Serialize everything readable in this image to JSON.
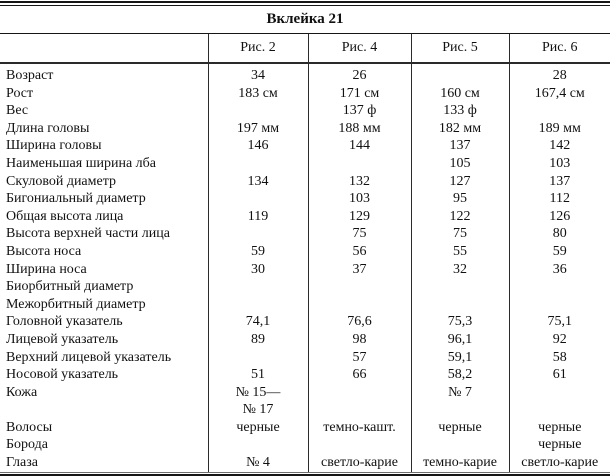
{
  "title": "Вклейка 21",
  "columns": [
    {
      "label": ""
    },
    {
      "label": "Рис. 2"
    },
    {
      "label": "Рис. 4"
    },
    {
      "label": "Рис. 5"
    },
    {
      "label": "Рис. 6"
    }
  ],
  "rows": [
    {
      "label": "Возраст",
      "values": [
        "34",
        "26",
        "",
        "28"
      ]
    },
    {
      "label": "Рост",
      "values": [
        "183 см",
        "171 см",
        "160 см",
        "167,4 см"
      ]
    },
    {
      "label": "Вес",
      "values": [
        "",
        "137 ф",
        "133 ф",
        ""
      ]
    },
    {
      "label": "Длина головы",
      "values": [
        "197 мм",
        "188 мм",
        "182 мм",
        "189 мм"
      ]
    },
    {
      "label": "Ширина головы",
      "values": [
        "146",
        "144",
        "137",
        "142"
      ]
    },
    {
      "label": "Наименьшая ширина лба",
      "values": [
        "",
        "",
        "105",
        "103"
      ]
    },
    {
      "label": "Скуловой диаметр",
      "values": [
        "134",
        "132",
        "127",
        "137"
      ]
    },
    {
      "label": "Бигониальный диаметр",
      "values": [
        "",
        "103",
        "95",
        "112"
      ]
    },
    {
      "label": "Общая высота лица",
      "values": [
        "119",
        "129",
        "122",
        "126"
      ]
    },
    {
      "label": "Высота верхней части лица",
      "values": [
        "",
        "75",
        "75",
        "80"
      ]
    },
    {
      "label": "Высота носа",
      "values": [
        "59",
        "56",
        "55",
        "59"
      ]
    },
    {
      "label": "Ширина носа",
      "values": [
        "30",
        "37",
        "32",
        "36"
      ]
    },
    {
      "label": "Биорбитный диаметр",
      "values": [
        "",
        "",
        "",
        ""
      ]
    },
    {
      "label": "Межорбитный диаметр",
      "values": [
        "",
        "",
        "",
        ""
      ]
    },
    {
      "label": "Головной указатель",
      "values": [
        "74,1",
        "76,6",
        "75,3",
        "75,1"
      ]
    },
    {
      "label": "Лицевой указатель",
      "values": [
        "89",
        "98",
        "96,1",
        "92"
      ]
    },
    {
      "label": "Верхний лицевой указатель",
      "values": [
        "",
        "57",
        "59,1",
        "58"
      ]
    },
    {
      "label": "Носовой указатель",
      "values": [
        "51",
        "66",
        "58,2",
        "61"
      ]
    },
    {
      "label": "Кожа",
      "values": [
        [
          "№ 15—",
          "№ 17"
        ],
        "",
        "№ 7",
        ""
      ]
    },
    {
      "label": "Волосы",
      "values": [
        "черные",
        "темно-кашт.",
        "черные",
        "черные"
      ]
    },
    {
      "label": "Борода",
      "values": [
        "",
        "",
        "",
        "черные"
      ]
    },
    {
      "label": "Глаза",
      "values": [
        "№ 4",
        "светло-карие",
        "темно-карие",
        "светло-карие"
      ]
    }
  ]
}
